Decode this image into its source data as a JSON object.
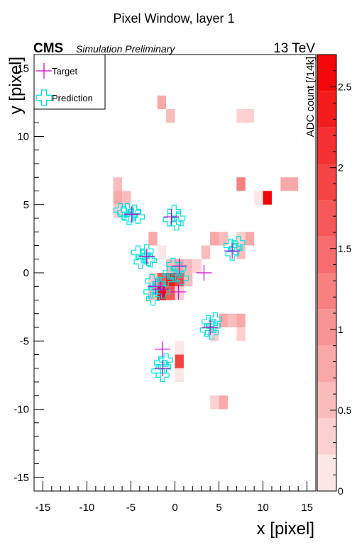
{
  "chart_data": {
    "type": "heatmap",
    "title": "Pixel Window, layer 1",
    "experiment_label": "CMS",
    "status_label": "Simulation Preliminary",
    "energy_label": "13 TeV",
    "xlabel": "x [pixel]",
    "ylabel": "y [pixel]",
    "zlabel": "ADC count [/14k]",
    "xlim": [
      -16,
      16
    ],
    "ylim": [
      -16,
      16
    ],
    "zlim": [
      0,
      2.7
    ],
    "x_ticks": [
      -15,
      -10,
      -5,
      0,
      5,
      10,
      15
    ],
    "y_ticks": [
      -15,
      -10,
      -5,
      0,
      5,
      10,
      15
    ],
    "z_ticks": [
      0,
      0.5,
      1,
      1.5,
      2,
      2.5
    ],
    "grid": false,
    "legend_position": "top-left",
    "colors": {
      "target": "#cc00cc",
      "prediction": "#00e0e0",
      "palette": [
        "#ffffff",
        "#fde6e6",
        "#fcd0d0",
        "#fbbcbc",
        "#faa8a8",
        "#f99494",
        "#f88080",
        "#f76c6c",
        "#f65858",
        "#f54444",
        "#f43030",
        "#f31c1c",
        "#f20808"
      ]
    },
    "legend": [
      {
        "label": "Target",
        "marker": "plus"
      },
      {
        "label": "Prediction",
        "marker": "open-cross"
      }
    ],
    "cells": [
      {
        "x": -1.5,
        "y": 12.5,
        "z": 0.7
      },
      {
        "x": -0.5,
        "y": 11.5,
        "z": 0.5
      },
      {
        "x": 7.5,
        "y": 11.5,
        "z": 0.4
      },
      {
        "x": 8.5,
        "y": 11.5,
        "z": 0.4
      },
      {
        "x": -6.5,
        "y": 6.5,
        "z": 0.5
      },
      {
        "x": 7.5,
        "y": 6.5,
        "z": 1.3
      },
      {
        "x": 12.5,
        "y": 6.5,
        "z": 0.7
      },
      {
        "x": 13.5,
        "y": 6.5,
        "z": 0.9
      },
      {
        "x": -6.5,
        "y": 5.5,
        "z": 0.9
      },
      {
        "x": -5.5,
        "y": 5.5,
        "z": 0.5
      },
      {
        "x": 9.5,
        "y": 5.5,
        "z": 0.2
      },
      {
        "x": 10.5,
        "y": 5.5,
        "z": 2.6
      },
      {
        "x": -6.5,
        "y": 4.5,
        "z": 0.4
      },
      {
        "x": -2.5,
        "y": 2.5,
        "z": 0.8
      },
      {
        "x": 4.5,
        "y": 2.5,
        "z": 0.7
      },
      {
        "x": 5.5,
        "y": 2.5,
        "z": 0.6
      },
      {
        "x": 7.5,
        "y": 2.5,
        "z": 0.3
      },
      {
        "x": 8.5,
        "y": 2.5,
        "z": 0.7
      },
      {
        "x": -1.5,
        "y": 1.5,
        "z": 0.2
      },
      {
        "x": 3.5,
        "y": 1.5,
        "z": 0.5
      },
      {
        "x": 7.5,
        "y": 1.5,
        "z": 0.5
      },
      {
        "x": -0.5,
        "y": 0.5,
        "z": 0.6
      },
      {
        "x": 0.5,
        "y": 0.5,
        "z": 0.8
      },
      {
        "x": 1.5,
        "y": 0.5,
        "z": 0.5
      },
      {
        "x": 2.5,
        "y": 0.5,
        "z": 0.4
      },
      {
        "x": -2.5,
        "y": -0.5,
        "z": 0.4
      },
      {
        "x": -1.5,
        "y": -0.5,
        "z": 1.7
      },
      {
        "x": -0.5,
        "y": -0.5,
        "z": 2.4
      },
      {
        "x": 0.5,
        "y": -0.5,
        "z": 1.9
      },
      {
        "x": 1.5,
        "y": -0.5,
        "z": 0.6
      },
      {
        "x": -2.5,
        "y": -1.5,
        "z": 0.5
      },
      {
        "x": -1.5,
        "y": -1.5,
        "z": 2.5
      },
      {
        "x": -0.5,
        "y": -1.5,
        "z": 1.6
      },
      {
        "x": 0.5,
        "y": -1.5,
        "z": 0.4
      },
      {
        "x": 5.5,
        "y": -3.5,
        "z": 0.7
      },
      {
        "x": 6.5,
        "y": -3.5,
        "z": 0.6
      },
      {
        "x": 7.5,
        "y": -3.5,
        "z": 0.8
      },
      {
        "x": 4.5,
        "y": -4.5,
        "z": 0.4
      },
      {
        "x": 7.5,
        "y": -4.5,
        "z": 0.3
      },
      {
        "x": 0.5,
        "y": -5.5,
        "z": 0.2
      },
      {
        "x": 0.5,
        "y": -6.5,
        "z": 2.0
      },
      {
        "x": 0.5,
        "y": -7.5,
        "z": 0.2
      },
      {
        "x": 4.5,
        "y": -9.5,
        "z": 0.4
      },
      {
        "x": 5.5,
        "y": -9.5,
        "z": 0.9
      }
    ],
    "targets": [
      {
        "x": -4.9,
        "y": 4.3
      },
      {
        "x": -0.4,
        "y": 4.1
      },
      {
        "x": -3.2,
        "y": 1.2
      },
      {
        "x": 6.5,
        "y": 1.6
      },
      {
        "x": 0.5,
        "y": 0.5
      },
      {
        "x": 3.3,
        "y": 0.0
      },
      {
        "x": -2.2,
        "y": -1.0
      },
      {
        "x": -1.6,
        "y": -1.2
      },
      {
        "x": 0.4,
        "y": -1.4
      },
      {
        "x": 4.0,
        "y": -4.0
      },
      {
        "x": -1.4,
        "y": -5.6
      },
      {
        "x": -1.4,
        "y": -7.0
      }
    ],
    "predictions": [
      {
        "x": -6.2,
        "y": 4.6
      },
      {
        "x": -5.8,
        "y": 4.4
      },
      {
        "x": -5.4,
        "y": 4.6
      },
      {
        "x": -5.0,
        "y": 4.2
      },
      {
        "x": -4.6,
        "y": 4.5
      },
      {
        "x": -4.2,
        "y": 4.1
      },
      {
        "x": -5.2,
        "y": 4.0
      },
      {
        "x": -0.1,
        "y": 4.5
      },
      {
        "x": 0.4,
        "y": 4.0
      },
      {
        "x": -0.6,
        "y": 3.9
      },
      {
        "x": 0.2,
        "y": 3.6
      },
      {
        "x": -4.2,
        "y": 1.5
      },
      {
        "x": -3.6,
        "y": 1.2
      },
      {
        "x": -3.2,
        "y": 1.6
      },
      {
        "x": -2.8,
        "y": 0.9
      },
      {
        "x": -3.9,
        "y": 0.8
      },
      {
        "x": -3.0,
        "y": 1.0
      },
      {
        "x": 6.3,
        "y": 2.0
      },
      {
        "x": 6.9,
        "y": 1.8
      },
      {
        "x": 6.5,
        "y": 1.4
      },
      {
        "x": 7.2,
        "y": 2.2
      },
      {
        "x": -0.2,
        "y": 0.6
      },
      {
        "x": 0.5,
        "y": 0.3
      },
      {
        "x": -0.6,
        "y": 0.0
      },
      {
        "x": 0.1,
        "y": -0.2
      },
      {
        "x": 0.8,
        "y": -0.4
      },
      {
        "x": -2.6,
        "y": -0.6
      },
      {
        "x": -2.2,
        "y": -1.1
      },
      {
        "x": -2.8,
        "y": -1.4
      },
      {
        "x": -1.8,
        "y": -0.8
      },
      {
        "x": -1.3,
        "y": -1.4
      },
      {
        "x": -2.5,
        "y": -1.9
      },
      {
        "x": -1.0,
        "y": -0.5
      },
      {
        "x": 3.8,
        "y": -3.6
      },
      {
        "x": 4.4,
        "y": -3.9
      },
      {
        "x": 3.6,
        "y": -4.2
      },
      {
        "x": 4.2,
        "y": -4.4
      },
      {
        "x": 4.6,
        "y": -3.4
      },
      {
        "x": -1.6,
        "y": -6.6
      },
      {
        "x": -1.2,
        "y": -6.9
      },
      {
        "x": -1.9,
        "y": -7.2
      },
      {
        "x": -1.4,
        "y": -7.5
      },
      {
        "x": -1.0,
        "y": -6.4
      }
    ]
  }
}
